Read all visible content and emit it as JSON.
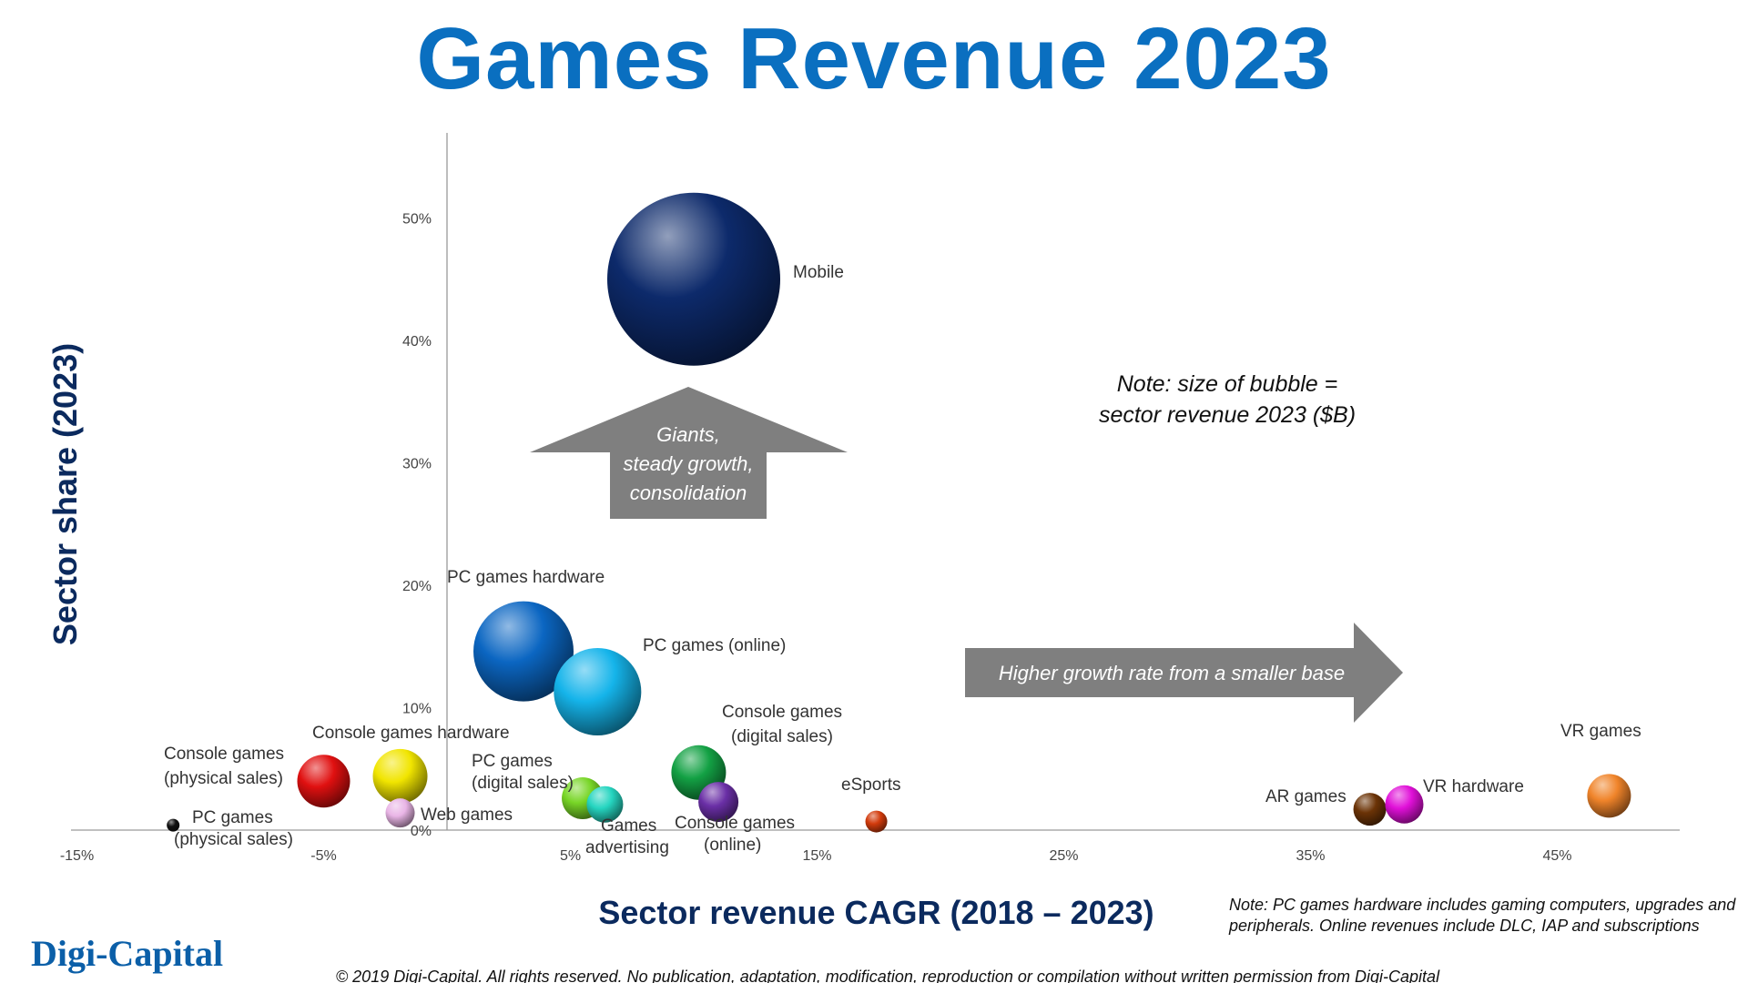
{
  "title": "Games Revenue 2023",
  "footnote": "Note: PC games hardware includes gaming computers, upgrades and peripherals. Online revenues include DLC, IAP and subscriptions",
  "copyright": "© 2019 Digi-Capital. All rights reserved. No publication, adaptation, modification, reproduction or compilation without written permission from Digi-Capital",
  "logo": "Digi-Capital",
  "note": [
    "Note: size of bubble =",
    "sector revenue 2023 ($B)"
  ],
  "arrow_up_text": [
    "Giants,",
    "steady growth,",
    "consolidation"
  ],
  "arrow_right_text": "Higher growth rate from a smaller base",
  "colors": {
    "title": "#0a6fc0",
    "axis_title": "#0b2a5e",
    "arrow": "#7f7f7f"
  },
  "chart_data": {
    "type": "bubble",
    "title": "Games Revenue 2023",
    "xlabel": "Sector revenue CAGR (2018 – 2023)",
    "ylabel": "Sector share (2023)",
    "xlim": [
      -15,
      50
    ],
    "ylim": [
      0,
      57
    ],
    "x_ticks": [
      -15,
      -5,
      5,
      15,
      25,
      35,
      45
    ],
    "x_tick_labels": [
      "-15%",
      "-5%",
      "5%",
      "15%",
      "25%",
      "35%",
      "45%"
    ],
    "y_ticks": [
      0,
      10,
      20,
      30,
      40,
      50
    ],
    "y_tick_labels": [
      "0%",
      "10%",
      "20%",
      "30%",
      "40%",
      "50%"
    ],
    "grid": false,
    "legend": "none",
    "series": [
      {
        "label": [
          "Mobile"
        ],
        "x": 10,
        "y": 45,
        "color": "#0d2a6b"
      },
      {
        "label": [
          "PC games hardware"
        ],
        "x": 3.1,
        "y": 14.6,
        "color": "#0b66c2"
      },
      {
        "label": [
          "PC games (online)"
        ],
        "x": 6.1,
        "y": 11.3,
        "color": "#15b4ea"
      },
      {
        "label": [
          "Console games",
          "(physical sales)"
        ],
        "x": -5,
        "y": 4,
        "color": "#e01010"
      },
      {
        "label": [
          "Console games hardware"
        ],
        "x": -1.9,
        "y": 4.4,
        "color": "#f1e500"
      },
      {
        "label": [
          "PC games",
          "(physical sales)"
        ],
        "x": -11.1,
        "y": 0.4,
        "color": "#111111"
      },
      {
        "label": [
          "Web games"
        ],
        "x": -1.9,
        "y": 1.4,
        "color": "#e9b5e6"
      },
      {
        "label": [
          "PC games",
          "(digital sales)"
        ],
        "x": 5.5,
        "y": 2.6,
        "color": "#78d627"
      },
      {
        "label": [
          "Games",
          "advertising"
        ],
        "x": 6.4,
        "y": 2.1,
        "color": "#25d5c0"
      },
      {
        "label": [
          "Console games",
          "(digital sales)"
        ],
        "x": 10.2,
        "y": 4.7,
        "color": "#13a144"
      },
      {
        "label": [
          "Console games",
          "(online)"
        ],
        "x": 11,
        "y": 2.3,
        "color": "#6a2fa6"
      },
      {
        "label": [
          "eSports"
        ],
        "x": 17.4,
        "y": 0.7,
        "color": "#d23b0c"
      },
      {
        "label": [
          "AR games"
        ],
        "x": 37.4,
        "y": 1.7,
        "color": "#6b3306"
      },
      {
        "label": [
          "VR hardware"
        ],
        "x": 38.8,
        "y": 2.1,
        "color": "#e010d8"
      },
      {
        "label": [
          "VR games"
        ],
        "x": 47.1,
        "y": 2.8,
        "color": "#f0842a"
      }
    ]
  }
}
